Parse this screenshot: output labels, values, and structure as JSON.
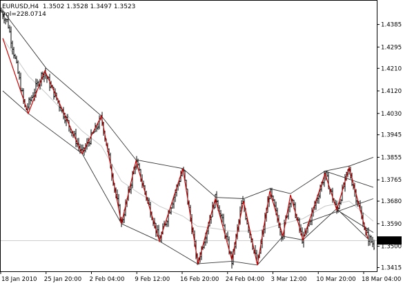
{
  "header": {
    "symbol": "EURUSD,H4",
    "ohlc": "1.3502 1.3528 1.3497 1.3523",
    "volume_label": "vol=228.0714"
  },
  "colors": {
    "background": "#ffffff",
    "frame": "#000000",
    "bars": "#000000",
    "zigzag": "#cc0000",
    "channel": "#333333",
    "ma": "#c8c8c8",
    "price_box": "#000000",
    "price_text": "#ffffff"
  },
  "chart_data": {
    "type": "ohlc",
    "symbol": "EURUSD",
    "timeframe": "H4",
    "last_price": "1.3523",
    "y_ticks": [
      "1.4385",
      "1.4295",
      "1.4210",
      "1.4120",
      "1.4030",
      "1.3945",
      "1.3855",
      "1.3765",
      "1.3680",
      "1.3590",
      "1.3500",
      "1.3415"
    ],
    "ylim": [
      1.34,
      1.448
    ],
    "x_ticks": [
      "18 Jan 2010",
      "25 Jan 20:00",
      "2 Feb 04:00",
      "9 Feb 12:00",
      "16 Feb 20:00",
      "24 Feb 04:00",
      "3 Mar 12:00",
      "10 Mar 20:00",
      "18 Mar 04:00"
    ],
    "price_path": [
      {
        "x": 0,
        "y": 1.444
      },
      {
        "x": 10,
        "y": 1.4395
      },
      {
        "x": 36,
        "y": 1.404
      },
      {
        "x": 62,
        "y": 1.42
      },
      {
        "x": 118,
        "y": 1.387
      },
      {
        "x": 146,
        "y": 1.401
      },
      {
        "x": 175,
        "y": 1.359
      },
      {
        "x": 196,
        "y": 1.384
      },
      {
        "x": 230,
        "y": 1.352
      },
      {
        "x": 264,
        "y": 1.381
      },
      {
        "x": 285,
        "y": 1.343
      },
      {
        "x": 312,
        "y": 1.37
      },
      {
        "x": 335,
        "y": 1.344
      },
      {
        "x": 350,
        "y": 1.368
      },
      {
        "x": 372,
        "y": 1.3425
      },
      {
        "x": 390,
        "y": 1.372
      },
      {
        "x": 408,
        "y": 1.354
      },
      {
        "x": 420,
        "y": 1.37
      },
      {
        "x": 438,
        "y": 1.352
      },
      {
        "x": 470,
        "y": 1.379
      },
      {
        "x": 487,
        "y": 1.364
      },
      {
        "x": 504,
        "y": 1.381
      },
      {
        "x": 530,
        "y": 1.3545
      },
      {
        "x": 541,
        "y": 1.3505
      }
    ],
    "zigzag": [
      {
        "x": 3,
        "y": 1.433
      },
      {
        "x": 40,
        "y": 1.403
      },
      {
        "x": 64,
        "y": 1.42
      },
      {
        "x": 118,
        "y": 1.387
      },
      {
        "x": 146,
        "y": 1.402
      },
      {
        "x": 175,
        "y": 1.359
      },
      {
        "x": 196,
        "y": 1.384
      },
      {
        "x": 230,
        "y": 1.352
      },
      {
        "x": 264,
        "y": 1.381
      },
      {
        "x": 286,
        "y": 1.343
      },
      {
        "x": 311,
        "y": 1.369
      },
      {
        "x": 335,
        "y": 1.3445
      },
      {
        "x": 352,
        "y": 1.368
      },
      {
        "x": 372,
        "y": 1.3425
      },
      {
        "x": 390,
        "y": 1.372
      },
      {
        "x": 409,
        "y": 1.354
      },
      {
        "x": 420,
        "y": 1.3705
      },
      {
        "x": 438,
        "y": 1.3525
      },
      {
        "x": 470,
        "y": 1.379
      },
      {
        "x": 487,
        "y": 1.3645
      },
      {
        "x": 505,
        "y": 1.3815
      },
      {
        "x": 532,
        "y": 1.353
      }
    ],
    "channel_lines": [
      [
        {
          "x": 3,
          "y": 1.444
        },
        {
          "x": 66,
          "y": 1.421
        },
        {
          "x": 146,
          "y": 1.402
        },
        {
          "x": 196,
          "y": 1.3845
        },
        {
          "x": 264,
          "y": 1.381
        },
        {
          "x": 312,
          "y": 1.3695
        },
        {
          "x": 352,
          "y": 1.369
        },
        {
          "x": 390,
          "y": 1.373
        },
        {
          "x": 420,
          "y": 1.371
        },
        {
          "x": 470,
          "y": 1.38
        },
        {
          "x": 505,
          "y": 1.382
        },
        {
          "x": 540,
          "y": 1.3855
        }
      ],
      [
        {
          "x": 3,
          "y": 1.412
        },
        {
          "x": 40,
          "y": 1.403
        },
        {
          "x": 118,
          "y": 1.387
        },
        {
          "x": 175,
          "y": 1.359
        },
        {
          "x": 230,
          "y": 1.352
        },
        {
          "x": 285,
          "y": 1.343
        },
        {
          "x": 335,
          "y": 1.344
        },
        {
          "x": 372,
          "y": 1.3425
        },
        {
          "x": 409,
          "y": 1.354
        },
        {
          "x": 438,
          "y": 1.3525
        },
        {
          "x": 487,
          "y": 1.365
        },
        {
          "x": 532,
          "y": 1.353
        }
      ],
      [
        {
          "x": 470,
          "y": 1.38
        },
        {
          "x": 540,
          "y": 1.3735
        }
      ],
      [
        {
          "x": 438,
          "y": 1.359
        },
        {
          "x": 540,
          "y": 1.369
        }
      ],
      [
        {
          "x": 487,
          "y": 1.3645
        },
        {
          "x": 540,
          "y": 1.3555
        }
      ]
    ],
    "ma_line": [
      {
        "x": 3,
        "y": 1.433
      },
      {
        "x": 40,
        "y": 1.418
      },
      {
        "x": 66,
        "y": 1.411
      },
      {
        "x": 118,
        "y": 1.396
      },
      {
        "x": 146,
        "y": 1.39
      },
      {
        "x": 175,
        "y": 1.376
      },
      {
        "x": 196,
        "y": 1.372
      },
      {
        "x": 230,
        "y": 1.366
      },
      {
        "x": 264,
        "y": 1.362
      },
      {
        "x": 285,
        "y": 1.358
      },
      {
        "x": 312,
        "y": 1.357
      },
      {
        "x": 335,
        "y": 1.356
      },
      {
        "x": 372,
        "y": 1.356
      },
      {
        "x": 409,
        "y": 1.359
      },
      {
        "x": 438,
        "y": 1.361
      },
      {
        "x": 470,
        "y": 1.366
      },
      {
        "x": 505,
        "y": 1.368
      },
      {
        "x": 540,
        "y": 1.36
      }
    ]
  }
}
